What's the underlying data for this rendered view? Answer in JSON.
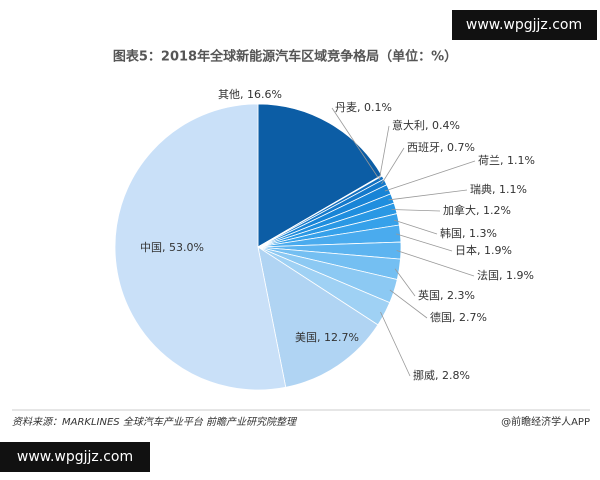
{
  "chart_data": {
    "type": "pie",
    "title": "图表5：2018年全球新能源汽车区域竞争格局（单位：%）",
    "value_labels": [
      "其他, 16.6%",
      "丹麦, 0.1%",
      "意大利, 0.4%",
      "西班牙, 0.7%",
      "荷兰, 1.1%",
      "瑞典, 1.1%",
      "加拿大, 1.2%",
      "韩国, 1.3%",
      "日本, 1.9%",
      "法国, 1.9%",
      "英国, 2.3%",
      "德国, 2.7%",
      "挪威, 2.8%",
      "美国, 12.7%",
      "中国, 53.0%"
    ],
    "values": [
      16.6,
      0.1,
      0.4,
      0.7,
      1.1,
      1.1,
      1.2,
      1.3,
      1.9,
      1.9,
      2.3,
      2.7,
      2.8,
      12.7,
      53.0
    ],
    "colors": [
      "#0c5da5",
      "#1066b3",
      "#1270c0",
      "#1479cb",
      "#1884d6",
      "#1f8ede",
      "#2a98e4",
      "#36a1ea",
      "#4aabee",
      "#5db4f0",
      "#74bff2",
      "#8cc9f3",
      "#9fd1f4",
      "#b0d4f3",
      "#c9e0f8"
    ],
    "source": "资料来源：MARKLINES 全球汽车产业平台 前瞻产业研究院整理",
    "credit": "@前瞻经济学人APP",
    "watermark": "www.wpgjjz.com"
  }
}
